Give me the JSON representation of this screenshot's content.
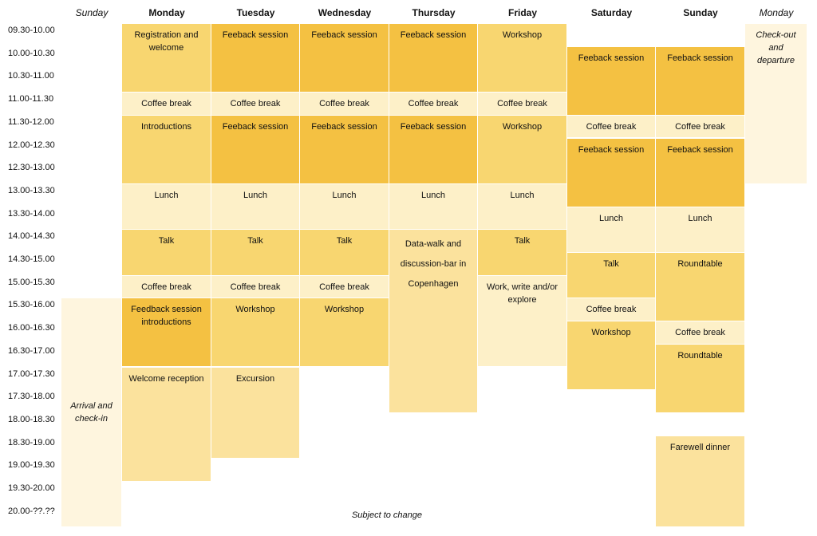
{
  "colors": {
    "dark": "#f4c142",
    "medium": "#f8d670",
    "light": "#fbe29d",
    "pale": "#fdf0c8",
    "faint": "#fef5de"
  },
  "days": [
    "Sunday",
    "Monday",
    "Tuesday",
    "Wednesday",
    "Thursday",
    "Friday",
    "Saturday",
    "Sunday",
    "Monday"
  ],
  "times": [
    "09.30-10.00",
    "10.00-10.30",
    "10.30-11.00",
    "11.00-11.30",
    "11.30-12.00",
    "12.00-12.30",
    "12.30-13.00",
    "13.00-13.30",
    "13.30-14.00",
    "14.00-14.30",
    "14.30-15.00",
    "15.00-15.30",
    "15.30-16.00",
    "16.00-16.30",
    "16.30-17.00",
    "17.00-17.30",
    "17.30-18.00",
    "18.00-18.30",
    "18.30-19.00",
    "19.00-19.30",
    "19.30-20.00",
    "20.00-??.??"
  ],
  "blocks": [
    {
      "col": 0,
      "start": 12,
      "end": 22,
      "text": "Arrival and check-in",
      "tone": "faint",
      "italic": true,
      "center": true
    },
    {
      "col": 1,
      "start": 0,
      "end": 3,
      "text": "Registration and welcome",
      "tone": "medium"
    },
    {
      "col": 1,
      "start": 3,
      "end": 4,
      "text": "Coffee break",
      "tone": "pale"
    },
    {
      "col": 1,
      "start": 4,
      "end": 7,
      "text": "Introductions",
      "tone": "medium"
    },
    {
      "col": 1,
      "start": 7,
      "end": 9,
      "text": "Lunch",
      "tone": "pale"
    },
    {
      "col": 1,
      "start": 9,
      "end": 11,
      "text": "Talk",
      "tone": "medium"
    },
    {
      "col": 1,
      "start": 11,
      "end": 12,
      "text": "Coffee break",
      "tone": "pale"
    },
    {
      "col": 1,
      "start": 12,
      "end": 15,
      "text": "Feedback session introductions",
      "tone": "dark"
    },
    {
      "col": 1,
      "start": 15,
      "end": 20,
      "text": "Welcome reception",
      "tone": "light"
    },
    {
      "col": 2,
      "start": 0,
      "end": 3,
      "text": "Feeback session",
      "tone": "dark"
    },
    {
      "col": 2,
      "start": 3,
      "end": 4,
      "text": "Coffee break",
      "tone": "pale"
    },
    {
      "col": 2,
      "start": 4,
      "end": 7,
      "text": "Feeback session",
      "tone": "dark"
    },
    {
      "col": 2,
      "start": 7,
      "end": 9,
      "text": "Lunch",
      "tone": "pale"
    },
    {
      "col": 2,
      "start": 9,
      "end": 11,
      "text": "Talk",
      "tone": "medium"
    },
    {
      "col": 2,
      "start": 11,
      "end": 12,
      "text": "Coffee break",
      "tone": "pale"
    },
    {
      "col": 2,
      "start": 12,
      "end": 15,
      "text": "Workshop",
      "tone": "medium"
    },
    {
      "col": 2,
      "start": 15,
      "end": 19,
      "text": "Excursion",
      "tone": "light"
    },
    {
      "col": 3,
      "start": 0,
      "end": 3,
      "text": "Feeback session",
      "tone": "dark"
    },
    {
      "col": 3,
      "start": 3,
      "end": 4,
      "text": "Coffee break",
      "tone": "pale"
    },
    {
      "col": 3,
      "start": 4,
      "end": 7,
      "text": "Feeback session",
      "tone": "dark"
    },
    {
      "col": 3,
      "start": 7,
      "end": 9,
      "text": "Lunch",
      "tone": "pale"
    },
    {
      "col": 3,
      "start": 9,
      "end": 11,
      "text": "Talk",
      "tone": "medium"
    },
    {
      "col": 3,
      "start": 11,
      "end": 12,
      "text": "Coffee break",
      "tone": "pale"
    },
    {
      "col": 3,
      "start": 12,
      "end": 15,
      "text": "Workshop",
      "tone": "medium"
    },
    {
      "col": 4,
      "start": 0,
      "end": 3,
      "text": "Feeback session",
      "tone": "dark"
    },
    {
      "col": 4,
      "start": 3,
      "end": 4,
      "text": "Coffee break",
      "tone": "pale"
    },
    {
      "col": 4,
      "start": 4,
      "end": 7,
      "text": "Feeback session",
      "tone": "dark"
    },
    {
      "col": 4,
      "start": 7,
      "end": 9,
      "text": "Lunch",
      "tone": "pale"
    },
    {
      "col": 4,
      "start": 9,
      "end": 17,
      "text": "Data-walk and discussion-bar in Copenhagen",
      "tone": "light",
      "loose": true
    },
    {
      "col": 5,
      "start": 0,
      "end": 3,
      "text": "Workshop",
      "tone": "medium"
    },
    {
      "col": 5,
      "start": 3,
      "end": 4,
      "text": "Coffee break",
      "tone": "pale"
    },
    {
      "col": 5,
      "start": 4,
      "end": 7,
      "text": "Workshop",
      "tone": "medium"
    },
    {
      "col": 5,
      "start": 7,
      "end": 9,
      "text": "Lunch",
      "tone": "pale"
    },
    {
      "col": 5,
      "start": 9,
      "end": 11,
      "text": "Talk",
      "tone": "medium"
    },
    {
      "col": 5,
      "start": 11,
      "end": 15,
      "text": "Work, write and/or explore",
      "tone": "pale"
    },
    {
      "col": 6,
      "start": 1,
      "end": 4,
      "text": "Feeback session",
      "tone": "dark"
    },
    {
      "col": 6,
      "start": 4,
      "end": 5,
      "text": "Coffee break",
      "tone": "pale"
    },
    {
      "col": 6,
      "start": 5,
      "end": 8,
      "text": "Feeback session",
      "tone": "dark"
    },
    {
      "col": 6,
      "start": 8,
      "end": 10,
      "text": "Lunch",
      "tone": "pale"
    },
    {
      "col": 6,
      "start": 10,
      "end": 12,
      "text": "Talk",
      "tone": "medium"
    },
    {
      "col": 6,
      "start": 12,
      "end": 13,
      "text": "Coffee break",
      "tone": "pale"
    },
    {
      "col": 6,
      "start": 13,
      "end": 16,
      "text": "Workshop",
      "tone": "medium"
    },
    {
      "col": 7,
      "start": 1,
      "end": 4,
      "text": "Feeback session",
      "tone": "dark"
    },
    {
      "col": 7,
      "start": 4,
      "end": 5,
      "text": "Coffee break",
      "tone": "pale"
    },
    {
      "col": 7,
      "start": 5,
      "end": 8,
      "text": "Feeback session",
      "tone": "dark"
    },
    {
      "col": 7,
      "start": 8,
      "end": 10,
      "text": "Lunch",
      "tone": "pale"
    },
    {
      "col": 7,
      "start": 10,
      "end": 13,
      "text": "Roundtable",
      "tone": "medium"
    },
    {
      "col": 7,
      "start": 13,
      "end": 14,
      "text": "Coffee break",
      "tone": "pale"
    },
    {
      "col": 7,
      "start": 14,
      "end": 17,
      "text": "Roundtable",
      "tone": "medium"
    },
    {
      "col": 7,
      "start": 18,
      "end": 22,
      "text": "Farewell dinner",
      "tone": "light"
    },
    {
      "col": 8,
      "start": 0,
      "end": 7,
      "text": "Check-out and departure",
      "tone": "faint",
      "italic": true
    }
  ],
  "note": "Subject to change"
}
